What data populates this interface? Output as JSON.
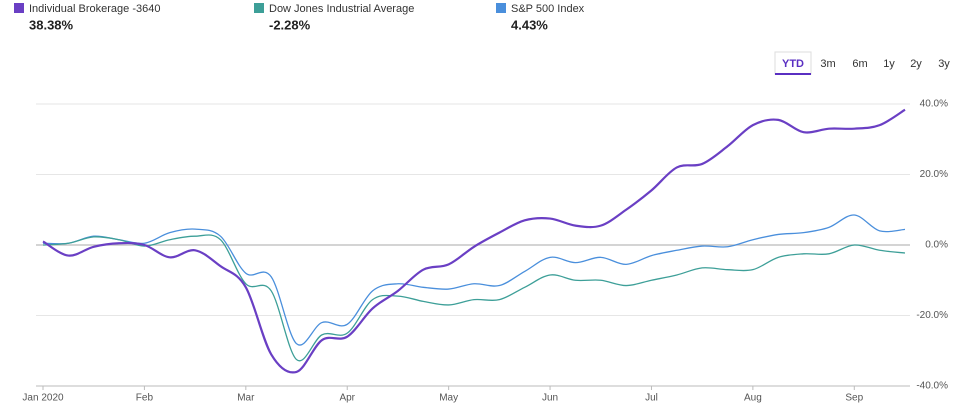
{
  "chart_data": {
    "type": "line",
    "categories": [
      "Jan 2020",
      null,
      null,
      null,
      "Feb",
      null,
      null,
      null,
      "Mar",
      null,
      null,
      null,
      "Apr",
      null,
      null,
      null,
      "May",
      null,
      null,
      null,
      "Jun",
      null,
      null,
      null,
      "Jul",
      null,
      null,
      null,
      "Aug",
      null,
      null,
      null,
      "Sep",
      null,
      null
    ],
    "series": [
      {
        "name": "Individual Brokerage -3640",
        "color": "#6a3fc4",
        "change_label": "38.38%",
        "values": [
          1,
          -3,
          -0.5,
          0.5,
          0,
          -3.5,
          -1.5,
          -6,
          -12,
          -31,
          -36,
          -27,
          -26,
          -18,
          -13,
          -7,
          -5.5,
          -0.5,
          3.5,
          7,
          7.5,
          5.5,
          5.5,
          10,
          15.5,
          22,
          23,
          28,
          34,
          35.5,
          32,
          33,
          33,
          34,
          38.38
        ]
      },
      {
        "name": "Dow Jones Industrial Average",
        "color": "#3d9f98",
        "change_label": "-2.28%",
        "values": [
          0,
          0.5,
          2.3,
          1.5,
          -0.3,
          1.5,
          2.5,
          1.5,
          -11,
          -13,
          -32.5,
          -25.5,
          -25,
          -15.5,
          -14.5,
          -16,
          -17,
          -15.5,
          -15.5,
          -12,
          -8.5,
          -10,
          -10,
          -11.5,
          -10,
          -8.5,
          -6.5,
          -7,
          -7,
          -3.5,
          -2.5,
          -2.5,
          0,
          -1.5,
          -2.28
        ]
      },
      {
        "name": "S&P 500 Index",
        "color": "#4a8fdc",
        "change_label": "4.43%",
        "values": [
          0.5,
          0.5,
          2.5,
          1.5,
          0.5,
          3.5,
          4.5,
          2.5,
          -8,
          -9,
          -28,
          -22,
          -22.5,
          -13,
          -11,
          -12,
          -12.5,
          -11,
          -11.5,
          -7.5,
          -3.5,
          -5,
          -3.5,
          -5.5,
          -3,
          -1.5,
          -0.3,
          -0.5,
          1.5,
          3,
          3.5,
          5,
          8.5,
          4,
          4.43
        ]
      }
    ],
    "ylim": [
      -40,
      40
    ],
    "yticks": [
      {
        "value": 40,
        "label": "40.0%"
      },
      {
        "value": 20,
        "label": "20.0%"
      },
      {
        "value": 0,
        "label": "0.0%"
      },
      {
        "value": -20,
        "label": "-20.0%"
      },
      {
        "value": -40,
        "label": "-40.0%"
      }
    ],
    "grid": true,
    "y_axis_side": "right"
  },
  "range_buttons": [
    "YTD",
    "3m",
    "6m",
    "1y",
    "2y",
    "3y"
  ],
  "selected_range": "YTD"
}
